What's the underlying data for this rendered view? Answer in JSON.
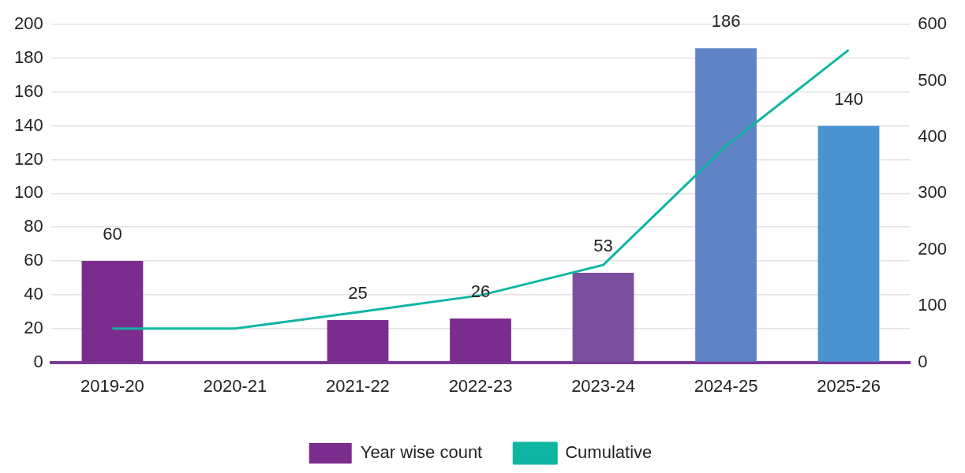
{
  "chart_data": {
    "type": "bar",
    "categories": [
      "2019-20",
      "2020-21",
      "2021-22",
      "2022-23",
      "2023-24",
      "2024-25",
      "2025-26"
    ],
    "series": [
      {
        "name": "Year wise count",
        "color": "#7b2d8e",
        "colors": [
          "#7b2d8e",
          "#7b2d8e",
          "#7a2d8f",
          "#7c2d90",
          "#7a4fa0",
          "#5f83c4",
          "#4a93d2"
        ],
        "values": [
          60,
          null,
          25,
          26,
          53,
          186,
          140
        ],
        "value_labels": [
          "60",
          null,
          "25",
          "26",
          "53",
          "186",
          "140"
        ]
      },
      {
        "name": "Cumulative",
        "type": "line",
        "axis": "y2",
        "color": "#0fb5a3",
        "values": [
          60,
          60,
          89,
          119,
          173,
          384,
          555
        ]
      }
    ],
    "ylim": [
      0,
      200
    ],
    "yticks": [
      0,
      20,
      40,
      60,
      80,
      100,
      120,
      140,
      160,
      180,
      200
    ],
    "y2lim": [
      0,
      600
    ],
    "y2ticks": [
      0,
      100,
      200,
      300,
      400,
      500,
      600
    ],
    "grid": "y",
    "legend": "bottom",
    "marker": "none"
  }
}
